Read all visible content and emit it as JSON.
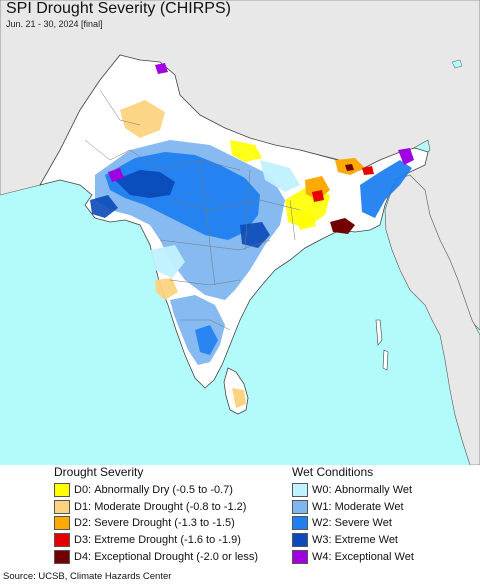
{
  "title": "SPI Drought Severity (CHIRPS)",
  "subtitle": "Jun. 21 - 30, 2024 [final]",
  "colors": {
    "ocean": "#b3fbfb",
    "land_outside": "#e8e8e8",
    "land_normal": "#ffffff",
    "border": "#444444"
  },
  "legend": {
    "drought": {
      "heading": "Drought Severity",
      "items": [
        {
          "code": "D0:",
          "label": "Abnormally Dry (-0.5 to -0.7)",
          "color": "#ffff00"
        },
        {
          "code": "D1:",
          "label": "Moderate Drought (-0.8 to -1.2)",
          "color": "#fcd37f"
        },
        {
          "code": "D2:",
          "label": "Severe Drought (-1.3 to -1.5)",
          "color": "#ffaa00"
        },
        {
          "code": "D3:",
          "label": "Extreme Drought (-1.6 to -1.9)",
          "color": "#e60000"
        },
        {
          "code": "D4:",
          "label": "Exceptional Drought (-2.0 or less)",
          "color": "#730000"
        }
      ]
    },
    "wet": {
      "heading": "Wet Conditions",
      "items": [
        {
          "code": "W0:",
          "label": "Abnormally Wet",
          "color": "#c1f0ff"
        },
        {
          "code": "W1:",
          "label": "Moderate Wet",
          "color": "#7fb6f0"
        },
        {
          "code": "W2:",
          "label": "Severe Wet",
          "color": "#1f7ff0"
        },
        {
          "code": "W3:",
          "label": "Extreme Wet",
          "color": "#0b4ab8"
        },
        {
          "code": "W4:",
          "label": "Exceptional Wet",
          "color": "#a000e0"
        }
      ]
    }
  },
  "source": "Source: UCSB, Climate Hazards Center"
}
